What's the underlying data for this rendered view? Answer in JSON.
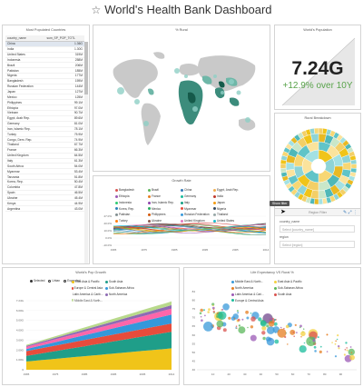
{
  "page": {
    "title": "World's Health Bank Dashboard"
  },
  "populated": {
    "title": "Most Populated Countries",
    "columns": [
      "country_name",
      "sum_SP_POP_TOTL"
    ],
    "rows": [
      [
        "China",
        "1.36G"
      ],
      [
        "India",
        "1.30G"
      ],
      [
        "United States",
        "319M"
      ],
      [
        "Indonesia",
        "258M"
      ],
      [
        "Brazil",
        "206M"
      ],
      [
        "Pakistan",
        "185M"
      ],
      [
        "Nigeria",
        "177M"
      ],
      [
        "Bangladesh",
        "159M"
      ],
      [
        "Russian Federation",
        "144M"
      ],
      [
        "Japan",
        "127M"
      ],
      [
        "Mexico",
        "125M"
      ],
      [
        "Philippines",
        "99.1M"
      ],
      [
        "Ethiopia",
        "97.0M"
      ],
      [
        "Vietnam",
        "90.7M"
      ],
      [
        "Egypt, Arab Rep.",
        "89.6M"
      ],
      [
        "Germany",
        "81.0M"
      ],
      [
        "Iran, Islamic Rep.",
        "78.1M"
      ],
      [
        "Turkey",
        "75.9M"
      ],
      [
        "Congo, Dem. Rep.",
        "74.9M"
      ],
      [
        "Thailand",
        "67.7M"
      ],
      [
        "France",
        "66.3M"
      ],
      [
        "United Kingdom",
        "64.5M"
      ],
      [
        "Italy",
        "61.3M"
      ],
      [
        "South Africa",
        "54.0M"
      ],
      [
        "Myanmar",
        "53.4M"
      ],
      [
        "Tanzania",
        "51.8M"
      ],
      [
        "Korea, Rep.",
        "50.4M"
      ],
      [
        "Colombia",
        "47.8M"
      ],
      [
        "Spain",
        "46.5M"
      ],
      [
        "Ukraine",
        "45.4M"
      ],
      [
        "Kenya",
        "44.9M"
      ],
      [
        "Argentina",
        "43.0M"
      ]
    ]
  },
  "rural": {
    "title": "% Rural"
  },
  "worldpop": {
    "title": "World's Population",
    "value": "7.24G",
    "growth": "+12.9% over 10Y"
  },
  "rural_breakdown": {
    "title": "Rural Breakdown"
  },
  "growth": {
    "title": "Growth Rate",
    "legend": [
      {
        "name": "Bangladesh",
        "color": "#d9534f"
      },
      {
        "name": "Brazil",
        "color": "#5cb85c"
      },
      {
        "name": "China",
        "color": "#337ab7"
      },
      {
        "name": "Egypt, Arab Rep.",
        "color": "#f0ad4e"
      },
      {
        "name": "Ethiopia",
        "color": "#9b59b6"
      },
      {
        "name": "France",
        "color": "#e67e22"
      },
      {
        "name": "Germany",
        "color": "#1abc9c"
      },
      {
        "name": "India",
        "color": "#c0392b"
      },
      {
        "name": "Indonesia",
        "color": "#2ecc71"
      },
      {
        "name": "Iran, Islamic Rep.",
        "color": "#8e44ad"
      },
      {
        "name": "Italy",
        "color": "#16a085"
      },
      {
        "name": "Japan",
        "color": "#f39c12"
      },
      {
        "name": "Korea, Rep.",
        "color": "#2980b9"
      },
      {
        "name": "Mexico",
        "color": "#27ae60"
      },
      {
        "name": "Myanmar",
        "color": "#e74c3c"
      },
      {
        "name": "Nigeria",
        "color": "#34495e"
      },
      {
        "name": "Pakistan",
        "color": "#7f8c8d"
      },
      {
        "name": "Philippines",
        "color": "#d35400"
      },
      {
        "name": "Russian Federation",
        "color": "#3498db"
      },
      {
        "name": "Thailand",
        "color": "#95a5a6"
      },
      {
        "name": "Turkey",
        "color": "#ff7f0e"
      },
      {
        "name": "Ukraine",
        "color": "#8c564b"
      },
      {
        "name": "United Kingdom",
        "color": "#e377c2"
      },
      {
        "name": "United States",
        "color": "#17becf"
      },
      {
        "name": "Vietnam",
        "color": "#bcbd22"
      }
    ],
    "yticks": [
      "27.0%",
      "20.0%",
      "10.0%",
      "0.0%",
      "-10.0%"
    ],
    "xticks": [
      "1965",
      "1975",
      "1985",
      "1995",
      "2005",
      "2014"
    ]
  },
  "filter": {
    "tooltip": "Show filter",
    "heading": "Region Filter",
    "field1_label": "country_name",
    "field1_placeholder": "Select [country_name]",
    "field2_label": "region",
    "field2_placeholder": "Select [region]"
  },
  "popgrowth": {
    "title": "World's Pop Growth",
    "legend": [
      "Selected",
      "Urban",
      "Expanded"
    ],
    "yticks": [
      "7.24G",
      "6.00G",
      "5.00G",
      "4.00G",
      "3.00G",
      "2.00G",
      "1.00G",
      "0"
    ],
    "xticks": [
      "1965",
      "1975",
      "1985",
      "1995",
      "2005",
      "2014"
    ]
  },
  "life": {
    "title": "Life Expectancy VS Rural %",
    "legend": [
      {
        "name": "Middle East & North...",
        "color": "#3a9ad9"
      },
      {
        "name": "East Asia & Pacific",
        "color": "#f4d03f"
      },
      {
        "name": "North America",
        "color": "#e67e22"
      },
      {
        "name": "Sub-Saharan Africa",
        "color": "#5cb85c"
      },
      {
        "name": "Latin America & Cari...",
        "color": "#9b59b6"
      },
      {
        "name": "South Asia",
        "color": "#d9534f"
      },
      {
        "name": "Europe & Central Asia",
        "color": "#1abc9c"
      }
    ],
    "yticks": [
      "84",
      "80",
      "75",
      "70",
      "65",
      "60",
      "55",
      "50",
      "45",
      "40"
    ],
    "xticks": [
      "10",
      "20",
      "30",
      "40",
      "50",
      "60",
      "70",
      "80",
      "90"
    ]
  },
  "pop_growth_legend": [
    {
      "name": "East Asia & Pacific",
      "color": "#f0c419"
    },
    {
      "name": "South Asia",
      "color": "#1f9e89"
    },
    {
      "name": "Europe & Central Asia",
      "color": "#e74c3c"
    },
    {
      "name": "Sub-Saharan Africa",
      "color": "#3498db"
    },
    {
      "name": "Latin America & Carib...",
      "color": "#ff66aa"
    },
    {
      "name": "North America",
      "color": "#8e6bb4"
    },
    {
      "name": "Middle East & North...",
      "color": "#b8d98b"
    }
  ]
}
